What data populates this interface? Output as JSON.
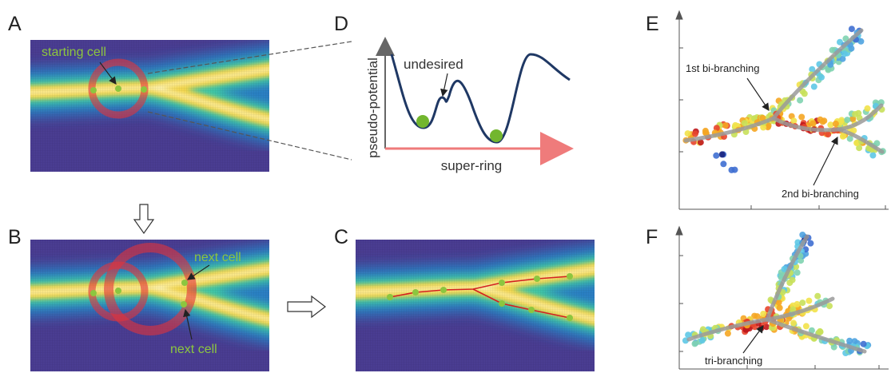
{
  "panels": [
    {
      "label": "A",
      "annotations": [
        "starting cell"
      ]
    },
    {
      "label": "B",
      "annotations": [
        "next cell",
        "next cell"
      ]
    },
    {
      "label": "C"
    },
    {
      "label": "D",
      "annotations": [
        "undesired"
      ],
      "y_axis": "pseudo-potential",
      "x_axis": "super-ring"
    },
    {
      "label": "E",
      "annotations": [
        "1st bi-branching",
        "2nd bi-branching"
      ]
    },
    {
      "label": "F",
      "annotations": [
        "tri-branching"
      ]
    }
  ]
}
